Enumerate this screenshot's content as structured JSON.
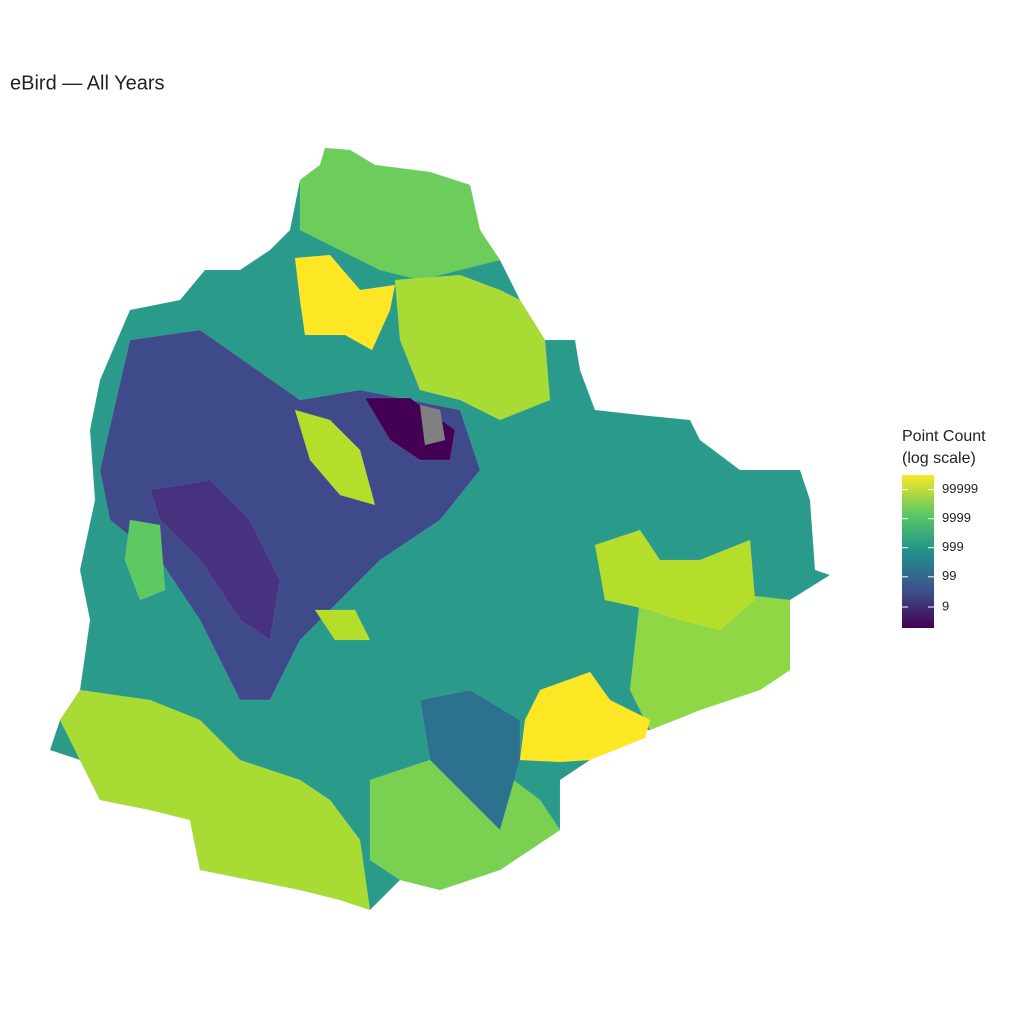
{
  "title": "eBird — All Years",
  "legend": {
    "title": [
      "Point Count",
      "(log scale)"
    ],
    "log_scale": true,
    "lim": [
      1.7,
      320000
    ],
    "ticks": [
      9,
      99,
      999,
      9999,
      99999
    ],
    "colors": [
      "#440154",
      "#3b528b",
      "#21918c",
      "#5ec962",
      "#fde725"
    ]
  }
}
